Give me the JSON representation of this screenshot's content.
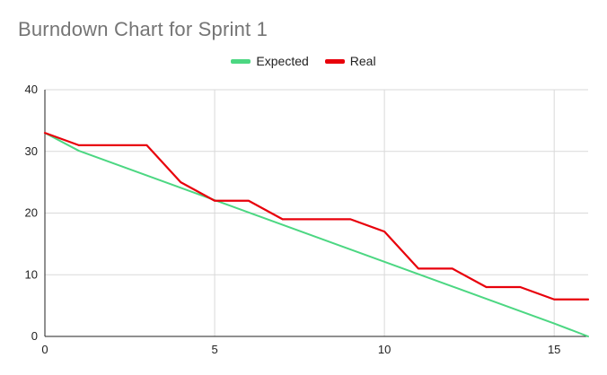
{
  "chart_data": {
    "type": "line",
    "title": "Burndown Chart for Sprint 1",
    "xlabel": "",
    "ylabel": "",
    "xlim": [
      0,
      16
    ],
    "ylim": [
      0,
      40
    ],
    "x_ticks": [
      0,
      5,
      10,
      15
    ],
    "y_ticks": [
      0,
      10,
      20,
      30,
      40
    ],
    "grid": true,
    "legend_position": "top",
    "series": [
      {
        "name": "Expected",
        "color": "#4cd782",
        "x": [
          0,
          1,
          2,
          3,
          4,
          5,
          6,
          7,
          8,
          9,
          10,
          11,
          12,
          13,
          14,
          15,
          16
        ],
        "values": [
          33,
          30.1,
          28.1,
          26.1,
          24.1,
          22.1,
          20.1,
          18.1,
          16.1,
          14.1,
          12.1,
          10.1,
          8.1,
          6.1,
          4.1,
          2.1,
          0
        ]
      },
      {
        "name": "Real",
        "color": "#e8000b",
        "x": [
          0,
          1,
          2,
          3,
          4,
          5,
          6,
          7,
          8,
          9,
          10,
          11,
          12,
          13,
          14,
          15,
          16
        ],
        "values": [
          33,
          31,
          31,
          31,
          25,
          22,
          22,
          19,
          19,
          19,
          17,
          11,
          11,
          8,
          8,
          6,
          6
        ]
      }
    ]
  }
}
